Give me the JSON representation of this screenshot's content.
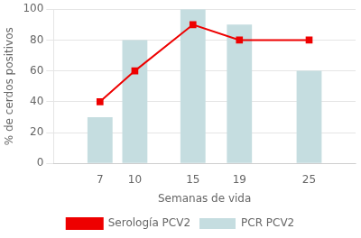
{
  "chart_data": {
    "type": "bar",
    "x": [
      7,
      10,
      15,
      19,
      25
    ],
    "series": [
      {
        "name": "PCR PCV2",
        "type": "bar",
        "color": "#c5dde0",
        "values": [
          30,
          80,
          100,
          90,
          60
        ]
      },
      {
        "name": "Serología PCV2",
        "type": "line",
        "color": "#ee0000",
        "marker": "square",
        "values": [
          40,
          60,
          90,
          80,
          80
        ]
      }
    ],
    "xlabel": "Semanas de vida",
    "ylabel": "% de cerdos positivos",
    "xlim": [
      3,
      29
    ],
    "xticks": [
      7,
      10,
      15,
      19,
      25
    ],
    "ylim": [
      0,
      100
    ],
    "yticks": [
      0,
      20,
      40,
      60,
      80,
      100
    ],
    "grid": "y",
    "legend": "bottom"
  }
}
